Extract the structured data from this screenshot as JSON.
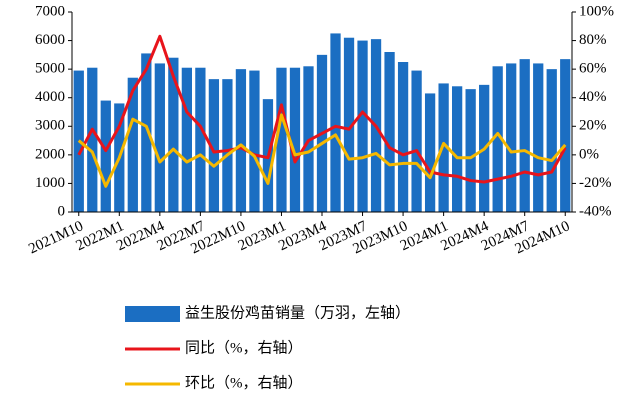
{
  "chart_data": {
    "type": "bar",
    "categories": [
      "2021M10",
      null,
      null,
      "2022M1",
      null,
      null,
      "2022M4",
      null,
      null,
      "2022M7",
      null,
      null,
      "2022M10",
      null,
      null,
      "2023M1",
      null,
      null,
      "2023M4",
      null,
      null,
      "2023M7",
      null,
      null,
      "2023M10",
      null,
      null,
      "2024M1",
      null,
      null,
      "2024M4",
      null,
      null,
      "2024M7",
      null,
      null,
      "2024M10"
    ],
    "series": [
      {
        "name": "益生股份鸡苗销量（万羽，左轴）",
        "type": "bar",
        "color": "#1b6ec2",
        "axis": "y",
        "values": [
          4950,
          5050,
          3900,
          3800,
          4700,
          5550,
          5200,
          5400,
          5050,
          5050,
          4650,
          4650,
          5000,
          4950,
          3950,
          5050,
          5050,
          5100,
          5500,
          6250,
          6100,
          6000,
          6050,
          5600,
          5250,
          4950,
          4150,
          4500,
          4400,
          4300,
          4450,
          5100,
          5200,
          5350,
          5200,
          5000,
          5350
        ]
      },
      {
        "name": "同比（%，右轴）",
        "type": "line",
        "color": "#e8141b",
        "axis": "y2",
        "values": [
          0,
          18,
          3,
          20,
          45,
          60,
          83,
          55,
          30,
          20,
          2,
          3,
          5,
          0,
          -2,
          35,
          -5,
          10,
          15,
          20,
          18,
          30,
          20,
          5,
          0,
          3,
          -12,
          -14,
          -15,
          -18,
          -19,
          -17,
          -15,
          -12,
          -14,
          -12,
          5
        ]
      },
      {
        "name": "环比（%，右轴）",
        "type": "line",
        "color": "#f5b800",
        "axis": "y2",
        "values": [
          10,
          2,
          -22,
          -2,
          25,
          20,
          -5,
          4,
          -5,
          0,
          -8,
          0,
          7,
          -1,
          -20,
          28,
          0,
          2,
          8,
          14,
          -3,
          -2,
          1,
          -7,
          -6,
          -6,
          -16,
          8,
          -2,
          -2,
          4,
          15,
          2,
          3,
          -2,
          -4,
          7
        ]
      }
    ],
    "ylim": [
      0,
      7000
    ],
    "yticks": [
      0,
      1000,
      2000,
      3000,
      4000,
      5000,
      6000,
      7000
    ],
    "y2lim": [
      -40,
      100
    ],
    "y2ticks": [
      {
        "value": -40,
        "label": "-40%"
      },
      {
        "value": -20,
        "label": "-20%"
      },
      {
        "value": 0,
        "label": "0%"
      },
      {
        "value": 20,
        "label": "20%"
      },
      {
        "value": 40,
        "label": "40%"
      },
      {
        "value": 60,
        "label": "60%"
      },
      {
        "value": 80,
        "label": "80%"
      },
      {
        "value": 100,
        "label": "100%"
      }
    ]
  }
}
